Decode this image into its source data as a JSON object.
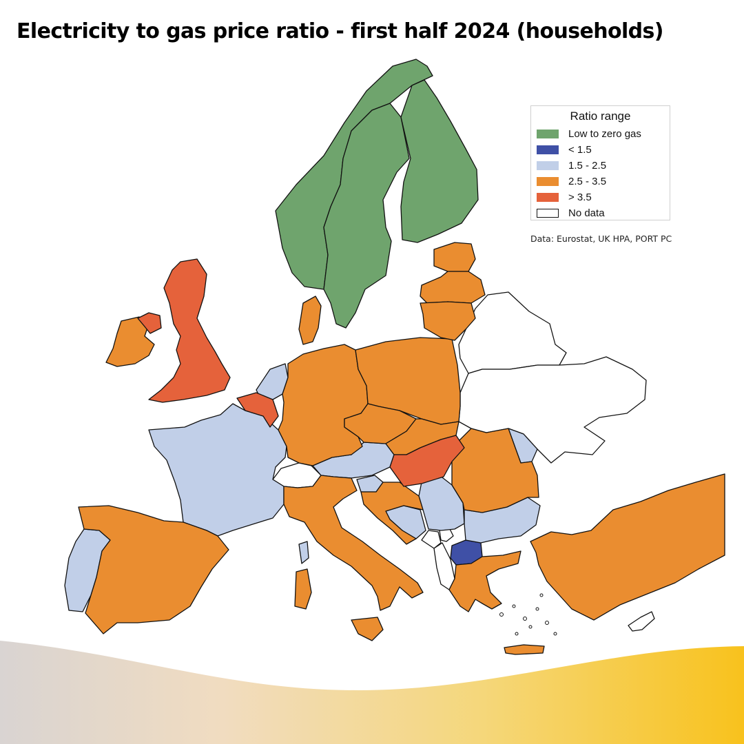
{
  "title": "Electricity to gas price ratio - first half 2024 (households)",
  "source": "Data: Eurostat, UK HPA, PORT PC",
  "legend": {
    "title": "Ratio range",
    "items": [
      {
        "label": "Low to zero gas",
        "color": "#6fa46d"
      },
      {
        "label": "< 1.5",
        "color": "#3f50a6"
      },
      {
        "label": "1.5 - 2.5",
        "color": "#c1cfe8"
      },
      {
        "label": "2.5 - 3.5",
        "color": "#ea8d30"
      },
      {
        "label": "> 3.5",
        "color": "#e5623b"
      },
      {
        "label": "No data",
        "color": "#ffffff"
      }
    ]
  },
  "countries": [
    {
      "name": "Norway",
      "category": "Low to zero gas"
    },
    {
      "name": "Sweden",
      "category": "Low to zero gas"
    },
    {
      "name": "Finland",
      "category": "Low to zero gas"
    },
    {
      "name": "North Macedonia",
      "category": "< 1.5"
    },
    {
      "name": "France",
      "category": "1.5 - 2.5"
    },
    {
      "name": "Portugal",
      "category": "1.5 - 2.5"
    },
    {
      "name": "Netherlands",
      "category": "1.5 - 2.5"
    },
    {
      "name": "Austria",
      "category": "1.5 - 2.5"
    },
    {
      "name": "Slovenia",
      "category": "1.5 - 2.5"
    },
    {
      "name": "Bosnia and Herzegovina",
      "category": "1.5 - 2.5"
    },
    {
      "name": "Serbia",
      "category": "1.5 - 2.5"
    },
    {
      "name": "Bulgaria",
      "category": "1.5 - 2.5"
    },
    {
      "name": "Moldova",
      "category": "1.5 - 2.5"
    },
    {
      "name": "Ireland",
      "category": "2.5 - 3.5"
    },
    {
      "name": "Spain",
      "category": "2.5 - 3.5"
    },
    {
      "name": "Italy",
      "category": "2.5 - 3.5"
    },
    {
      "name": "Germany",
      "category": "2.5 - 3.5"
    },
    {
      "name": "Denmark",
      "category": "2.5 - 3.5"
    },
    {
      "name": "Poland",
      "category": "2.5 - 3.5"
    },
    {
      "name": "Czechia",
      "category": "2.5 - 3.5"
    },
    {
      "name": "Slovakia",
      "category": "2.5 - 3.5"
    },
    {
      "name": "Romania",
      "category": "2.5 - 3.5"
    },
    {
      "name": "Croatia",
      "category": "2.5 - 3.5"
    },
    {
      "name": "Greece",
      "category": "2.5 - 3.5"
    },
    {
      "name": "Türkiye",
      "category": "2.5 - 3.5"
    },
    {
      "name": "Estonia",
      "category": "2.5 - 3.5"
    },
    {
      "name": "Latvia",
      "category": "2.5 - 3.5"
    },
    {
      "name": "Lithuania",
      "category": "2.5 - 3.5"
    },
    {
      "name": "United Kingdom",
      "category": "> 3.5"
    },
    {
      "name": "Belgium",
      "category": "> 3.5"
    },
    {
      "name": "Hungary",
      "category": "> 3.5"
    },
    {
      "name": "Switzerland",
      "category": "No data"
    },
    {
      "name": "Belarus",
      "category": "No data"
    },
    {
      "name": "Ukraine",
      "category": "No data"
    },
    {
      "name": "Montenegro",
      "category": "No data"
    },
    {
      "name": "Albania",
      "category": "No data"
    },
    {
      "name": "Kosovo",
      "category": "No data"
    }
  ]
}
